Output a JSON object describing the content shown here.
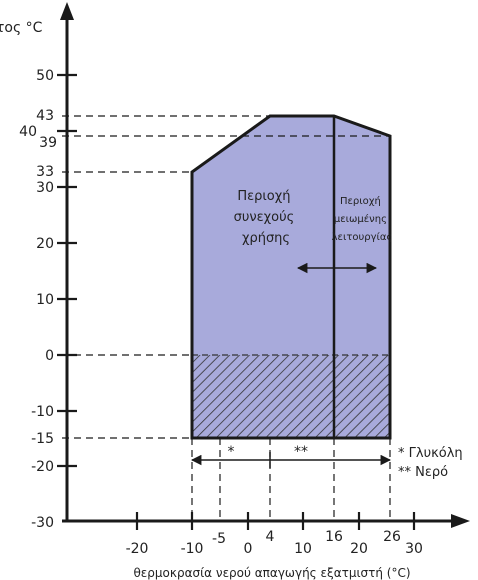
{
  "chart_data": {
    "type": "operating-envelope",
    "title": "",
    "ylabel": "τος °C",
    "xlabel": "θερμοκρασία νερού απαγωγής εξατμιστή (°C)",
    "y_axis_ticks": [
      "50",
      "40",
      "30",
      "20",
      "10",
      "0",
      "-10",
      "-20",
      "-30"
    ],
    "x_axis_ticks": [
      "-20",
      "-10",
      "0",
      "10",
      "20",
      "30"
    ],
    "y_marked_values": [
      "43",
      "39",
      "33",
      "0",
      "-15"
    ],
    "x_marked_values": [
      "-5",
      "4",
      "16",
      "26"
    ],
    "envelope_outline": [
      {
        "x": -10,
        "y": -15
      },
      {
        "x": -10,
        "y": 33
      },
      {
        "x": 4,
        "y": 43
      },
      {
        "x": 16,
        "y": 43
      },
      {
        "x": 26,
        "y": 39
      },
      {
        "x": 26,
        "y": -15
      }
    ],
    "divider_x": 16,
    "hatched_band": {
      "y_from": -15,
      "y_to": 0
    },
    "region_continuous": {
      "lines": [
        "Περιοχή",
        "συνεχούς",
        "χρήσης"
      ]
    },
    "region_reduced": {
      "lines": [
        "Περιοχή",
        "μειωμένης",
        "λειτουργίας"
      ]
    },
    "range_glycol": {
      "x_from": -10,
      "x_to": 4,
      "marker": "*"
    },
    "range_water": {
      "x_from": 4,
      "x_to": 26,
      "marker": "**"
    },
    "legend": [
      "* Γλυκόλη",
      "** Νερό"
    ],
    "colors": {
      "fill": "#a8aadb",
      "outline": "#1a1a1a",
      "hatch": "#333333"
    }
  }
}
